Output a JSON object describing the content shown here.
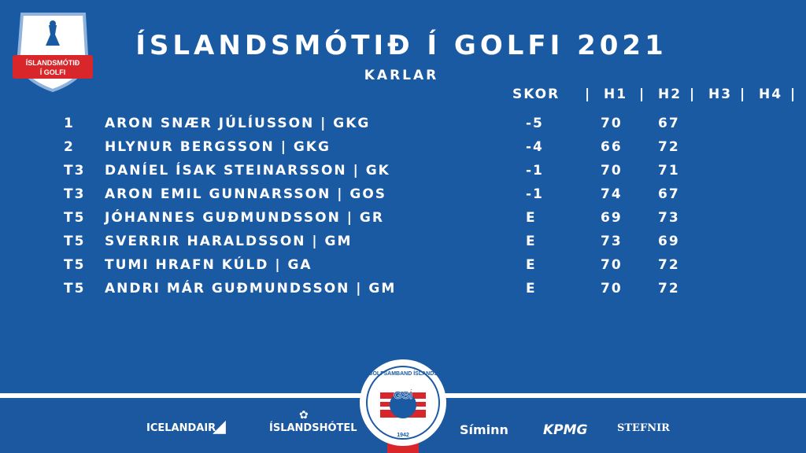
{
  "header": {
    "title": "ÍSLANDSMÓTIÐ Í GOLFI 2021",
    "subtitle": "KARLAR",
    "badge_text_1": "ÍSLANDSMÓTIÐ",
    "badge_text_2": "Í GOLFI"
  },
  "columns": {
    "skor": "SKOR",
    "h1": "H1",
    "h2": "H2",
    "h3": "H3",
    "h4": "H4",
    "sep": "|"
  },
  "rows": [
    {
      "pos": "1",
      "name": "ARON SNÆR JÚLÍUSSON | GKG",
      "score": "-5",
      "h1": "70",
      "h2": "67"
    },
    {
      "pos": "2",
      "name": "HLYNUR BERGSSON | GKG",
      "score": "-4",
      "h1": "66",
      "h2": "72"
    },
    {
      "pos": "T3",
      "name": "DANÍEL ÍSAK STEINARSSON | GK",
      "score": "-1",
      "h1": "70",
      "h2": "71"
    },
    {
      "pos": "T3",
      "name": "ARON EMIL GUNNARSSON | GOS",
      "score": "-1",
      "h1": "74",
      "h2": "67"
    },
    {
      "pos": "T5",
      "name": "JÓHANNES GUÐMUNDSSON | GR",
      "score": "E",
      "h1": "69",
      "h2": "73"
    },
    {
      "pos": "T5",
      "name": "SVERRIR HARALDSSON | GM",
      "score": "E",
      "h1": "73",
      "h2": "69"
    },
    {
      "pos": "T5",
      "name": "TUMI HRAFN KÚLD | GA",
      "score": "E",
      "h1": "70",
      "h2": "72"
    },
    {
      "pos": "T5",
      "name": "ANDRI MÁR GUÐMUNDSSON | GM",
      "score": "E",
      "h1": "70",
      "h2": "72"
    }
  ],
  "footer": {
    "seal_top": "GOLFSAMBAND ÍSLANDS",
    "seal_mid": "GSÍ",
    "seal_year": "1942",
    "sponsors": [
      "ICELANDAIR",
      "ÍSLANDSHÓTEL",
      "Síminn",
      "KPMG",
      "STEFNIR"
    ]
  },
  "colors": {
    "background": "#1a5aa3",
    "accent_red": "#d9262b"
  }
}
